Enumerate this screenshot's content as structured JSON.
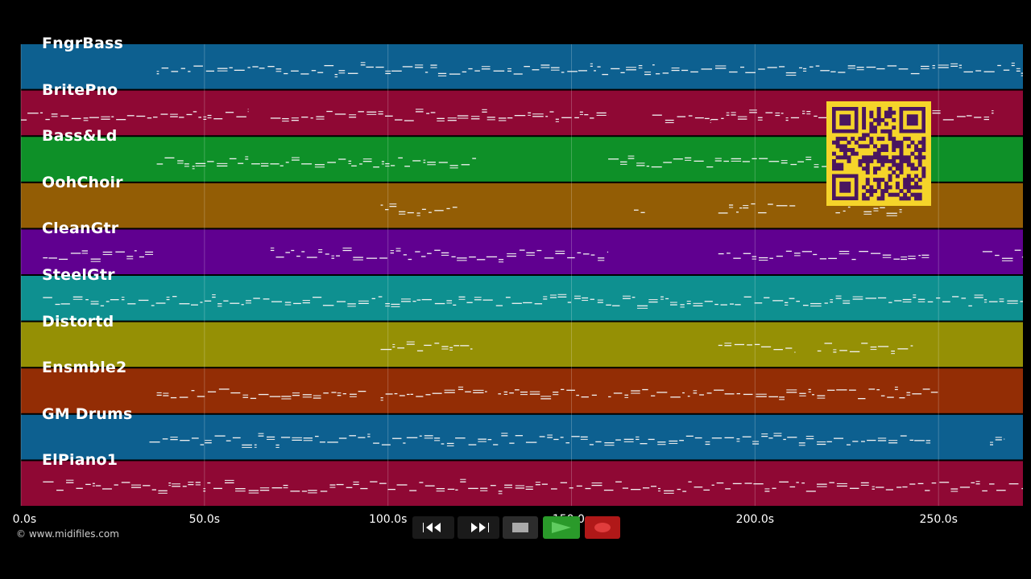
{
  "tracks": [
    {
      "name": "FngrBass",
      "color": "#0d6090"
    },
    {
      "name": "BritePno",
      "color": "#8f0834"
    },
    {
      "name": "Bass&Ld",
      "color": "#0e9028"
    },
    {
      "name": "OohChoir",
      "color": "#935d05"
    },
    {
      "name": "CleanGtr",
      "color": "#600090"
    },
    {
      "name": "SteelGtr",
      "color": "#0e9090"
    },
    {
      "name": "Distortd",
      "color": "#959005"
    },
    {
      "name": "Ensmble2",
      "color": "#932d05"
    },
    {
      "name": "GM Drums",
      "color": "#0d6090"
    },
    {
      "name": "ElPiano1",
      "color": "#8f0834"
    }
  ],
  "timeline": {
    "ticks": [
      "0.0s",
      "50.0s",
      "100.0s",
      "150.0s",
      "200.0s",
      "250.0s"
    ],
    "tick_values_s": [
      0,
      50,
      100,
      150,
      200,
      250
    ],
    "end_s": 273
  },
  "copyright": "© www.midifiles.com",
  "transport": {
    "rewind_icon": "rewind-icon",
    "fast_forward_icon": "fast-forward-icon",
    "stop_icon": "stop-icon",
    "play_icon": "play-icon",
    "record_icon": "record-icon",
    "play_color": "#2a9a2a",
    "record_color": "#b01818"
  },
  "qr": {
    "bg": "#f5d42a",
    "fg": "#4a1560"
  }
}
